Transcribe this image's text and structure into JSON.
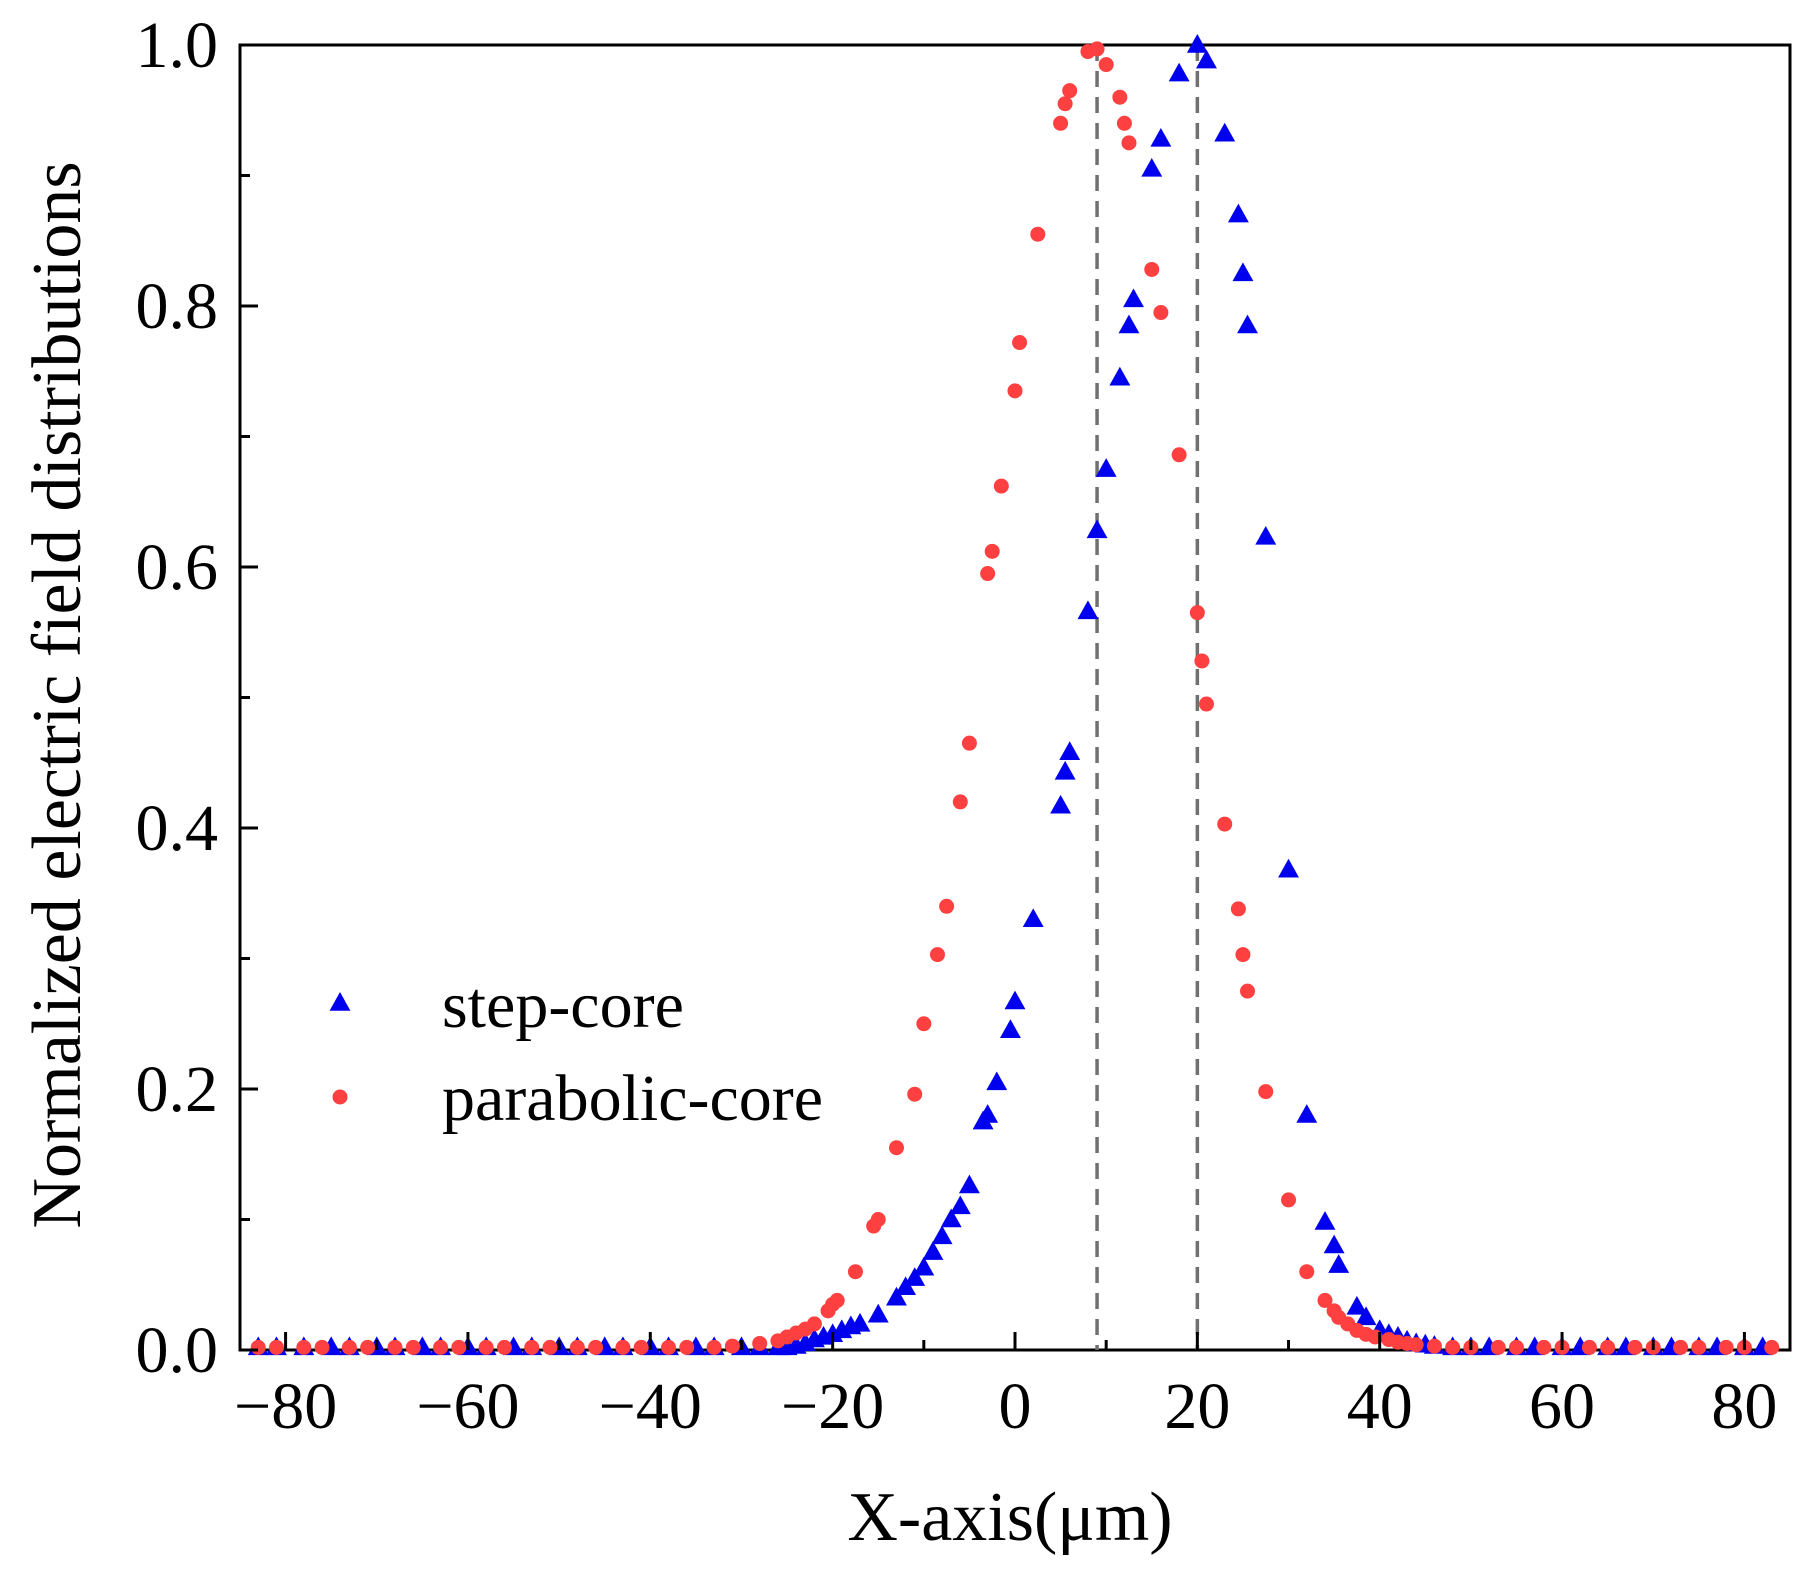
{
  "chart_data": {
    "type": "scatter",
    "title": "",
    "xlabel": "X-axis(μm)",
    "ylabel": "Normalized electric field distributions",
    "xlim": [
      -85,
      85
    ],
    "ylim": [
      0,
      1.0
    ],
    "xticks": [
      -80,
      -60,
      -40,
      -20,
      0,
      20,
      40,
      60,
      80
    ],
    "xtick_labels": [
      "−80",
      "−60",
      "−40",
      "−20",
      "0",
      "20",
      "40",
      "60",
      "80"
    ],
    "yticks": [
      0,
      0.2,
      0.4,
      0.6,
      0.8,
      1.0
    ],
    "ytick_labels": [
      "0.0",
      "0.2",
      "0.4",
      "0.6",
      "0.8",
      "1.0"
    ],
    "grid": false,
    "legend_position": "left",
    "reference_lines": [
      {
        "x": 9,
        "style": "dashed",
        "color": "#707070"
      },
      {
        "x": 20,
        "style": "dashed",
        "color": "#707070"
      }
    ],
    "series": [
      {
        "name": "step-core",
        "marker": "triangle",
        "color": "#0000ee",
        "x": [
          -83,
          -81,
          -78,
          -75,
          -73,
          -70,
          -68,
          -65,
          -63,
          -60,
          -58,
          -55,
          -53,
          -50,
          -48,
          -45,
          -43,
          -40,
          -38,
          -35,
          -33,
          -30,
          -28,
          -26,
          -25,
          -24,
          -23,
          -22,
          -21,
          -20,
          -19,
          -18,
          -17,
          -15,
          -13,
          -12,
          -11,
          -10,
          -9,
          -8,
          -7,
          -6,
          -5,
          -3.5,
          -3,
          -2,
          -0.5,
          0,
          2,
          5,
          5.5,
          6,
          8,
          9,
          10,
          11.5,
          12.5,
          13,
          15,
          16,
          18,
          20,
          21,
          23,
          24.5,
          25,
          25.5,
          27.5,
          30,
          32,
          34,
          35,
          35.5,
          37.5,
          38.5,
          40,
          41,
          42,
          43,
          44,
          45,
          46,
          48,
          50,
          52,
          55,
          57,
          60,
          62,
          65,
          67,
          70,
          72,
          75,
          77,
          80,
          82
        ],
        "y": [
          0.002,
          0.002,
          0.002,
          0.002,
          0.002,
          0.002,
          0.002,
          0.002,
          0.002,
          0.002,
          0.002,
          0.002,
          0.002,
          0.002,
          0.002,
          0.002,
          0.002,
          0.002,
          0.002,
          0.002,
          0.002,
          0.002,
          0.002,
          0.002,
          0.002,
          0.003,
          0.005,
          0.008,
          0.01,
          0.012,
          0.015,
          0.018,
          0.02,
          0.027,
          0.04,
          0.048,
          0.055,
          0.063,
          0.075,
          0.087,
          0.1,
          0.11,
          0.126,
          0.175,
          0.18,
          0.205,
          0.245,
          0.267,
          0.33,
          0.417,
          0.443,
          0.458,
          0.566,
          0.628,
          0.675,
          0.745,
          0.785,
          0.805,
          0.905,
          0.928,
          0.978,
          1.0,
          0.988,
          0.932,
          0.87,
          0.825,
          0.785,
          0.623,
          0.368,
          0.18,
          0.098,
          0.08,
          0.065,
          0.033,
          0.025,
          0.015,
          0.012,
          0.01,
          0.007,
          0.005,
          0.004,
          0.003,
          0.002,
          0.002,
          0.002,
          0.002,
          0.002,
          0.002,
          0.002,
          0.002,
          0.002,
          0.002,
          0.002,
          0.002,
          0.002,
          0.002,
          0.002
        ]
      },
      {
        "name": "parabolic-core",
        "marker": "circle",
        "color": "#ff4040",
        "x": [
          -83,
          -81,
          -78,
          -76,
          -73,
          -71,
          -68,
          -66,
          -63,
          -61,
          -58,
          -56,
          -53,
          -51,
          -48,
          -46,
          -43,
          -41,
          -38,
          -36,
          -33,
          -31,
          -28,
          -26,
          -25,
          -24,
          -23,
          -22,
          -20.5,
          -20,
          -19.5,
          -17.5,
          -15.5,
          -15,
          -13,
          -11,
          -10,
          -8.5,
          -7.5,
          -6,
          -5,
          -3,
          -2.5,
          -1.5,
          0,
          0.5,
          2.5,
          5,
          5.5,
          6,
          8,
          9,
          10,
          11.5,
          12,
          12.5,
          15,
          16,
          18,
          20,
          20.5,
          21,
          23,
          24.5,
          25,
          25.5,
          27.5,
          30,
          32,
          34,
          35,
          35.5,
          36.5,
          37.5,
          38.5,
          39.5,
          41,
          42,
          43,
          44,
          46,
          48,
          50,
          53,
          55,
          58,
          60,
          63,
          65,
          68,
          70,
          73,
          75,
          78,
          80,
          83
        ],
        "y": [
          0.002,
          0.002,
          0.002,
          0.002,
          0.002,
          0.002,
          0.002,
          0.002,
          0.002,
          0.002,
          0.002,
          0.002,
          0.002,
          0.002,
          0.002,
          0.002,
          0.002,
          0.002,
          0.002,
          0.002,
          0.002,
          0.003,
          0.005,
          0.007,
          0.01,
          0.013,
          0.016,
          0.02,
          0.03,
          0.035,
          0.038,
          0.06,
          0.095,
          0.1,
          0.155,
          0.196,
          0.25,
          0.303,
          0.34,
          0.42,
          0.465,
          0.595,
          0.612,
          0.662,
          0.735,
          0.772,
          0.855,
          0.94,
          0.955,
          0.965,
          0.995,
          0.997,
          0.985,
          0.96,
          0.94,
          0.925,
          0.828,
          0.795,
          0.686,
          0.565,
          0.528,
          0.495,
          0.403,
          0.338,
          0.303,
          0.275,
          0.198,
          0.115,
          0.06,
          0.038,
          0.03,
          0.025,
          0.02,
          0.015,
          0.012,
          0.01,
          0.008,
          0.006,
          0.005,
          0.004,
          0.003,
          0.002,
          0.002,
          0.002,
          0.002,
          0.002,
          0.002,
          0.002,
          0.002,
          0.002,
          0.002,
          0.002,
          0.002,
          0.002,
          0.002,
          0.002
        ]
      }
    ]
  }
}
